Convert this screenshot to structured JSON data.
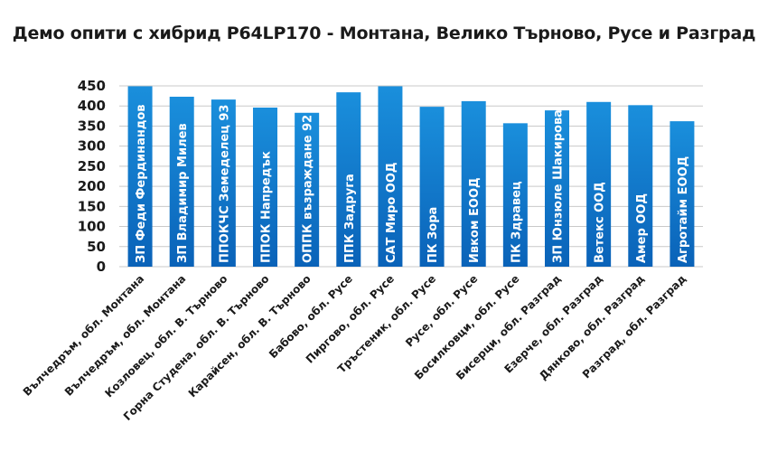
{
  "title": "Демо опити с хибрид P64LP170 - Монтана, Велико Търново, Русе и Разград",
  "chart_data": {
    "type": "bar",
    "title": "Демо опити с хибрид P64LP170 - Монтана, Велико Търново, Русе и Разград",
    "categories": [
      "Вълчедръм, обл. Монтана",
      "Вълчедръм, обл. Монтана",
      "Козловец, обл. В. Търново",
      "Горна Студена, обл. В. Търново",
      "Карайсен, обл. В. Търново",
      "Бабово, обл. Русе",
      "Пиргово, обл. Русе",
      "Тръстеник, обл. Русе",
      "Русе, обл. Русе",
      "Босилковци, обл. Русе",
      "Бисерци, обл. Разград",
      "Езерче, обл. Разград",
      "Дянково, обл. Разград",
      "Разград, обл. Разград"
    ],
    "bar_labels": [
      "ЗП Феди Фердинандов",
      "ЗП Владимир Милев",
      "ППОКЧС Земеделец 93",
      "ППОК Напредък",
      "ОППК възраждане 92",
      "ППК Задруга",
      "САТ Миро ООД",
      "ПК Зора",
      "Ивком ЕООД",
      "ПК Здравец",
      "ЗП Юнзюле Шакирова",
      "Ветекс ООД",
      "Амер ООД",
      "Агротайм ЕООД"
    ],
    "values": [
      449,
      423,
      416,
      396,
      383,
      434,
      449,
      398,
      412,
      357,
      389,
      410,
      402,
      362
    ],
    "ylim": [
      0,
      450
    ],
    "yticks": [
      0,
      50,
      100,
      150,
      200,
      250,
      300,
      350,
      400,
      450
    ],
    "grid": true,
    "xlabel": "",
    "ylabel": "",
    "colors": {
      "bar_top": "#1a8fdc",
      "bar_bottom": "#0a62b8",
      "grid": "#c9c9c9"
    }
  }
}
